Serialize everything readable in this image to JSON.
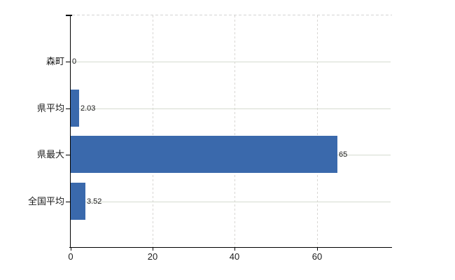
{
  "chart_data": {
    "type": "bar",
    "orientation": "horizontal",
    "title": "",
    "categories": [
      "森町",
      "県平均",
      "県最大",
      "全国平均"
    ],
    "values": [
      0,
      2.03,
      65,
      3.52
    ],
    "value_labels": [
      "0",
      "2.03",
      "65",
      "3.52"
    ],
    "x_ticks": [
      0,
      20,
      40,
      60
    ],
    "x_tick_labels": [
      "0",
      "20",
      "40",
      "60"
    ],
    "xlim": [
      0,
      78
    ],
    "grid": {
      "horizontal": "solid",
      "vertical": "dashed"
    },
    "legend": "none",
    "colors": {
      "bar": "#3a69ac",
      "h_grid": "#d5dbd0",
      "v_grid": "#d8d6d3",
      "axis": "#000000",
      "text": "#1c1c1c",
      "background": "#ffffff"
    }
  }
}
